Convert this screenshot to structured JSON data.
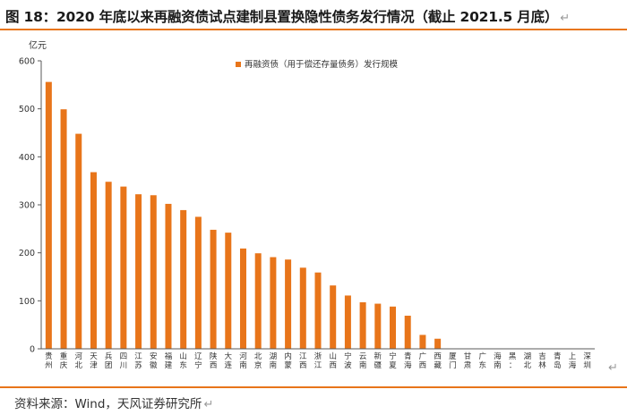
{
  "title": "图 18：2020 年底以来再融资债试点建制县置换隐性债务发行情况（截止 2021.5 月底）",
  "return_mark": "↵",
  "source": "资料来源：Wind，天风证券研究所",
  "chart_data": {
    "type": "bar",
    "ylabel": "亿元",
    "ylim": [
      0,
      600
    ],
    "yticks": [
      0,
      100,
      200,
      300,
      400,
      500,
      600
    ],
    "grid": false,
    "legend": "top-center",
    "series": [
      {
        "name": "再融资债（用于偿还存量债务）发行规模",
        "color": "#E8751A",
        "values": [
          556,
          499,
          448,
          368,
          348,
          338,
          322,
          320,
          302,
          289,
          275,
          248,
          242,
          209,
          199,
          191,
          186,
          169,
          159,
          132,
          111,
          97,
          94,
          88,
          69,
          29,
          21,
          0,
          0,
          0,
          0,
          0,
          0,
          0,
          0,
          0,
          0
        ]
      }
    ],
    "categories": [
      [
        "贵",
        "州"
      ],
      [
        "重",
        "庆"
      ],
      [
        "河",
        "北"
      ],
      [
        "天",
        "津"
      ],
      [
        "兵",
        "团"
      ],
      [
        "四",
        "川"
      ],
      [
        "江",
        "苏"
      ],
      [
        "安",
        "徽"
      ],
      [
        "福",
        "建"
      ],
      [
        "山",
        "东"
      ],
      [
        "辽",
        "宁"
      ],
      [
        "陕",
        "西"
      ],
      [
        "大",
        "连"
      ],
      [
        "河",
        "南"
      ],
      [
        "北",
        "京"
      ],
      [
        "湖",
        "南"
      ],
      [
        "内",
        "蒙"
      ],
      [
        "江",
        "西"
      ],
      [
        "浙",
        "江"
      ],
      [
        "山",
        "西"
      ],
      [
        "宁",
        "波"
      ],
      [
        "云",
        "南"
      ],
      [
        "新",
        "疆"
      ],
      [
        "宁",
        "夏"
      ],
      [
        "青",
        "海"
      ],
      [
        "广",
        "西"
      ],
      [
        "西",
        "藏"
      ],
      [
        "厦",
        "门"
      ],
      [
        "甘",
        "肃"
      ],
      [
        "广",
        "东"
      ],
      [
        "海",
        "南"
      ],
      [
        "黑",
        "："
      ],
      [
        "湖",
        "北"
      ],
      [
        "吉",
        "林"
      ],
      [
        "青",
        "岛"
      ],
      [
        "上",
        "海"
      ],
      [
        "深",
        "圳"
      ]
    ]
  }
}
